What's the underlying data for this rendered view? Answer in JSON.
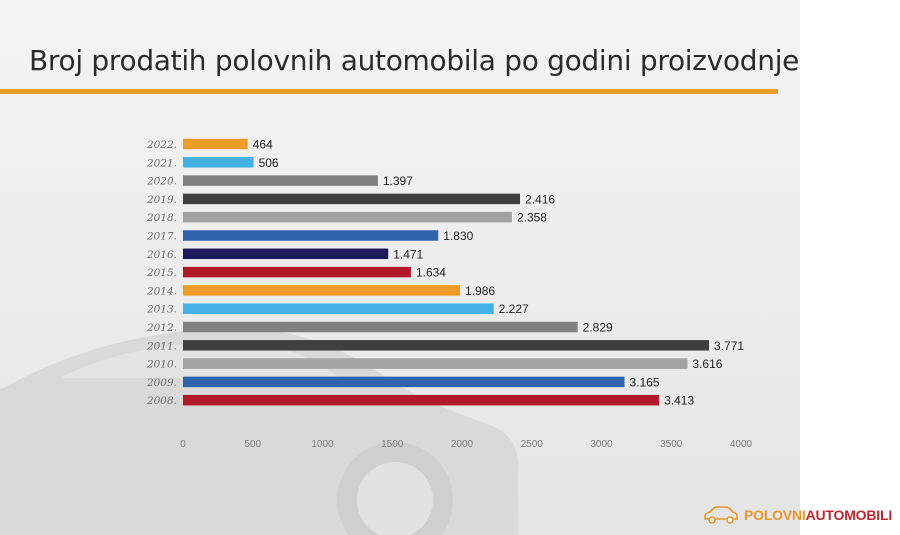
{
  "page": {
    "title": "Broj prodatih polovnih automobila po godini proizvodnje",
    "accent_color": "#ee9b27"
  },
  "logo": {
    "icon": "car-icon",
    "part1": "POLOVNI",
    "part2": "AUTOMOBILI",
    "color_part1": "#e8972c",
    "color_part2": "#c0262f"
  },
  "chart_data": {
    "type": "bar",
    "orientation": "horizontal",
    "title": "Broj prodatih polovnih automobila po godini proizvodnje",
    "xlabel": "",
    "ylabel": "",
    "categories": [
      "2022.",
      "2021.",
      "2020.",
      "2019.",
      "2018.",
      "2017.",
      "2016.",
      "2015.",
      "2014.",
      "2013.",
      "2012.",
      "2011.",
      "2010.",
      "2009.",
      "2008."
    ],
    "values": [
      464,
      506,
      1397,
      2416,
      2358,
      1830,
      1471,
      1634,
      1986,
      2227,
      2829,
      3771,
      3616,
      3165,
      3413
    ],
    "value_labels": [
      "464",
      "506",
      "1.397",
      "2.416",
      "2.358",
      "1.830",
      "1.471",
      "1.634",
      "1.986",
      "2.227",
      "2.829",
      "3.771",
      "3.616",
      "3.165",
      "3.413"
    ],
    "colors": [
      "#ee9b27",
      "#43b1e3",
      "#808080",
      "#3f3f3f",
      "#a2a2a2",
      "#2e64ae",
      "#1d1a5c",
      "#b21a2c",
      "#ee9b27",
      "#43b1e3",
      "#808080",
      "#3f3f3f",
      "#a2a2a2",
      "#2e64ae",
      "#b21a2c"
    ],
    "xlim": [
      0,
      4000
    ],
    "xticks": [
      0,
      500,
      1000,
      1500,
      2000,
      2500,
      3000,
      3500,
      4000
    ],
    "grid": false,
    "legend": "none"
  }
}
